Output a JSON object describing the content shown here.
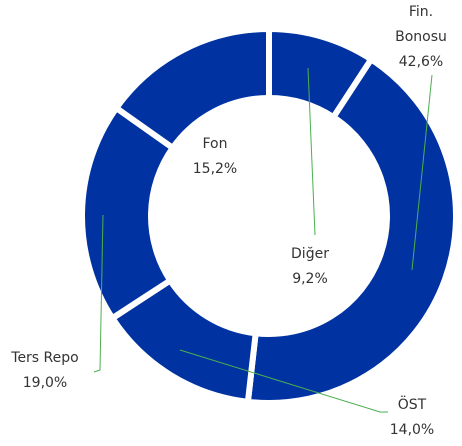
{
  "chart_data": {
    "type": "donut",
    "categories": [
      "Diğer",
      "Fin. Bonosu",
      "ÖST",
      "Ters Repo",
      "Fon"
    ],
    "values": [
      9.2,
      42.6,
      14.0,
      19.0,
      15.2
    ],
    "value_labels": [
      "9,2%",
      "42,6%",
      "14,0%",
      "19,0%",
      "15,2%"
    ],
    "color": "#0033a1"
  }
}
